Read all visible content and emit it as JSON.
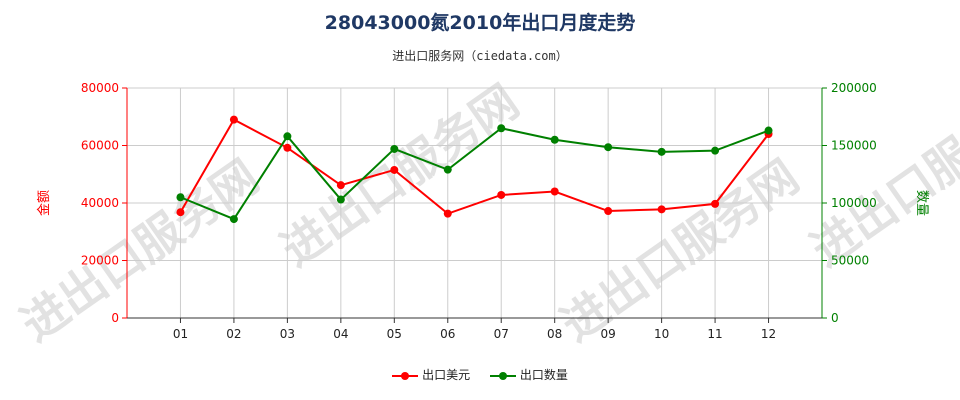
{
  "header": {
    "title": "28043000氮2010年出口月度走势",
    "subtitle": "进出口服务网（ciedata.com）"
  },
  "watermark": "进出口服务网",
  "chart_data": {
    "type": "line",
    "categories": [
      "01",
      "02",
      "03",
      "04",
      "05",
      "06",
      "07",
      "08",
      "09",
      "10",
      "11",
      "12"
    ],
    "series": [
      {
        "name": "出口美元",
        "axis": "left",
        "color": "#ff0000",
        "values": [
          36800,
          69000,
          59200,
          46200,
          51500,
          36300,
          42800,
          44000,
          37200,
          37800,
          39700,
          64000
        ]
      },
      {
        "name": "出口数量",
        "axis": "right",
        "color": "#008000",
        "values": [
          105000,
          86000,
          158000,
          103000,
          147000,
          129000,
          165000,
          155000,
          148500,
          144500,
          145500,
          163000
        ]
      }
    ],
    "y_left": {
      "label": "金额",
      "ylim": [
        0,
        80000
      ],
      "ticks": [
        "0",
        "20000",
        "40000",
        "60000",
        "80000"
      ],
      "color": "#ff0000"
    },
    "y_right": {
      "label": "数量",
      "ylim": [
        0,
        200000
      ],
      "ticks": [
        "0",
        "50000",
        "100000",
        "150000",
        "200000"
      ],
      "color": "#008000"
    },
    "grid": true,
    "legend": "bottom"
  }
}
